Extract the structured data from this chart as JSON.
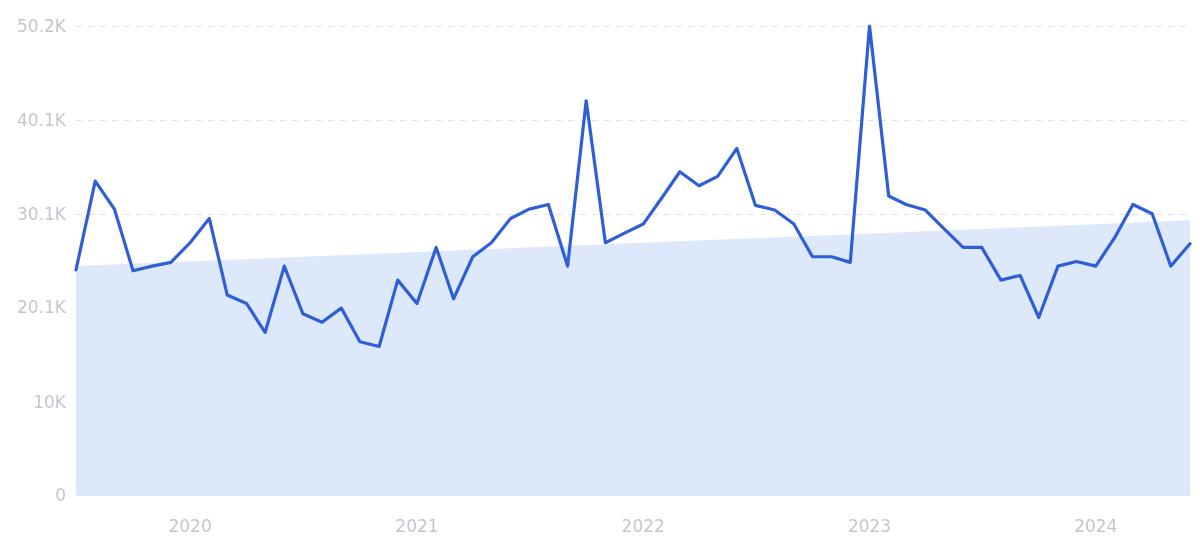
{
  "chart_data": {
    "type": "line",
    "xlim": [
      "2019-07",
      "2024-06"
    ],
    "xticks": [
      "2020",
      "2021",
      "2022",
      "2023",
      "2024"
    ],
    "ylim": [
      0,
      50200
    ],
    "yticks": [
      0,
      {
        "value": 10000,
        "label": "10K"
      },
      {
        "value": 20100,
        "label": "20.1K"
      },
      {
        "value": 30100,
        "label": "30.1K"
      },
      {
        "value": 40100,
        "label": "40.1K"
      },
      {
        "value": 50200,
        "label": "50.2K"
      }
    ],
    "grid": "y",
    "marker": "none",
    "line_style": "solid",
    "x": [
      "2019-07",
      "2019-08",
      "2019-09",
      "2019-10",
      "2019-11",
      "2019-12",
      "2020-01",
      "2020-02",
      "2020-03",
      "2020-04",
      "2020-05",
      "2020-06",
      "2020-07",
      "2020-08",
      "2020-09",
      "2020-10",
      "2020-11",
      "2020-12",
      "2021-01",
      "2021-02",
      "2021-03",
      "2021-04",
      "2021-05",
      "2021-06",
      "2021-07",
      "2021-08",
      "2021-09",
      "2021-10",
      "2021-11",
      "2021-12",
      "2022-01",
      "2022-02",
      "2022-03",
      "2022-04",
      "2022-05",
      "2022-06",
      "2022-07",
      "2022-08",
      "2022-09",
      "2022-10",
      "2022-11",
      "2022-12",
      "2023-01",
      "2023-02",
      "2023-03",
      "2023-04",
      "2023-05",
      "2023-06",
      "2023-07",
      "2023-08",
      "2023-09",
      "2023-10",
      "2023-11",
      "2023-12",
      "2024-01",
      "2024-02",
      "2024-03",
      "2024-04",
      "2024-05",
      "2024-06"
    ],
    "series": [
      {
        "type": "area",
        "color": "#dde9fb",
        "x": [
          "2019-07",
          "2024-06"
        ],
        "values": [
          24500,
          29400
        ]
      },
      {
        "color": "#2f5fd6",
        "values": [
          24100,
          33600,
          30600,
          24000,
          24500,
          24900,
          27000,
          29600,
          21400,
          20500,
          17400,
          24500,
          19400,
          18500,
          20000,
          16400,
          15900,
          23000,
          20500,
          26500,
          21000,
          25500,
          27000,
          29600,
          30600,
          31100,
          24500,
          42200,
          27000,
          28000,
          29000,
          31900,
          34600,
          33100,
          34100,
          37100,
          31000,
          30500,
          29000,
          25500,
          25500,
          24900,
          50200,
          32000,
          31100,
          30500,
          28500,
          26500,
          26500,
          23000,
          23500,
          19000,
          24500,
          25000,
          24500,
          27600,
          31100,
          30100,
          24500,
          26900
        ]
      }
    ]
  }
}
